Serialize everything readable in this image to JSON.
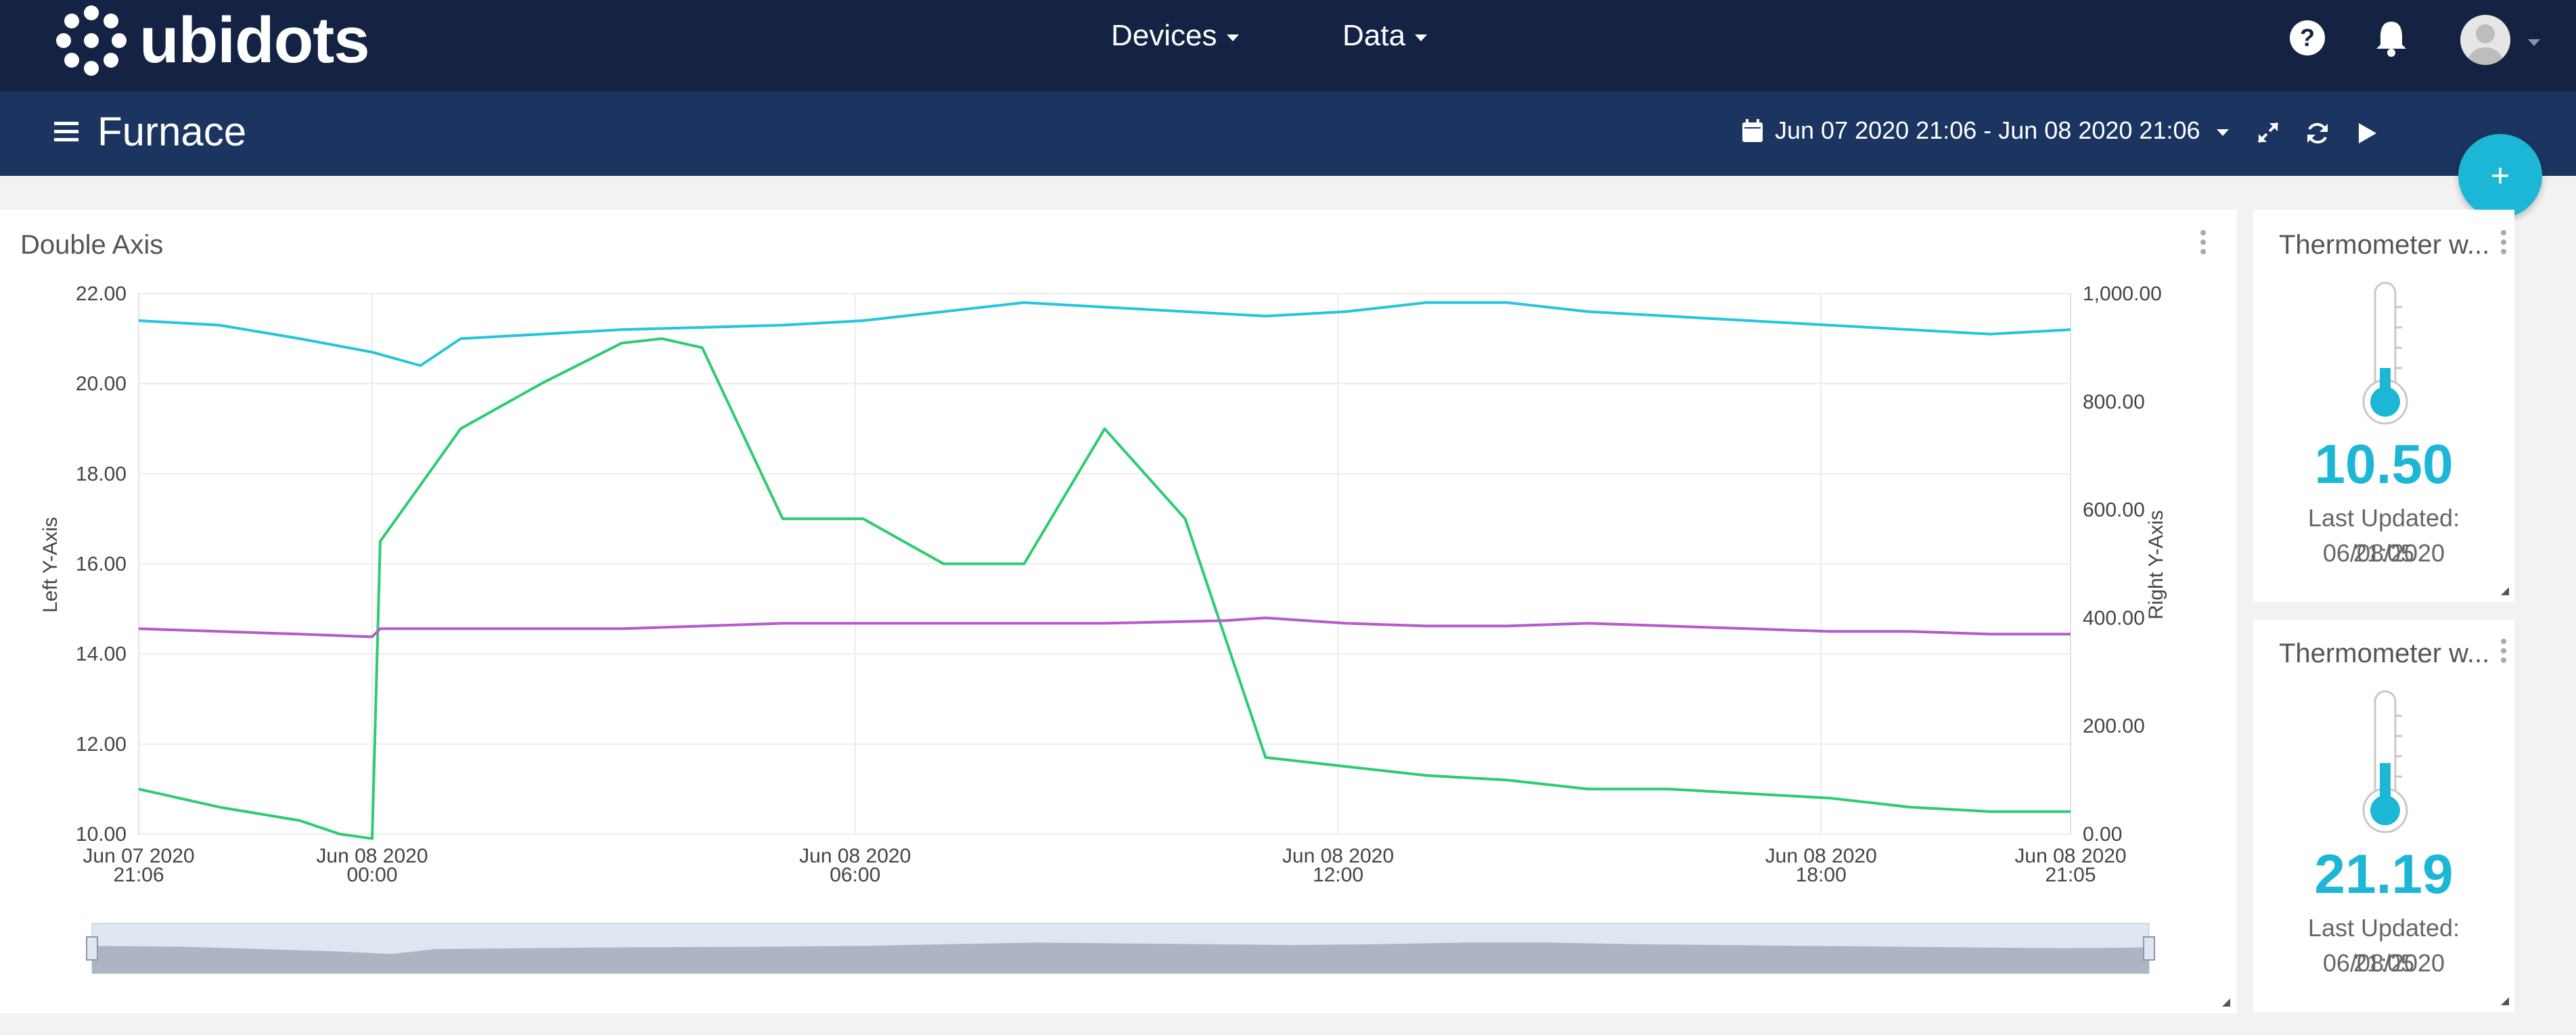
{
  "app": {
    "name": "ubidots"
  },
  "nav": {
    "devices_label": "Devices",
    "data_label": "Data"
  },
  "header_icons": [
    "help-icon",
    "bell-icon",
    "user-avatar"
  ],
  "dashboard": {
    "title": "Furnace",
    "date_range": "Jun 07 2020 21:06 - Jun 08 2020 21:06",
    "tool_icons": [
      "calendar-icon",
      "expand-icon",
      "refresh-icon",
      "play-icon"
    ],
    "add_label": "+"
  },
  "colors": {
    "topbar": "#142344",
    "subbar": "#1b3560",
    "accent": "#1cb6d6",
    "series_cyan": "#26c6da",
    "series_green": "#2ecc71",
    "series_purple": "#b45cc8"
  },
  "chart_widget": {
    "title": "Double Axis",
    "left_axis_label": "Left Y-Axis",
    "right_axis_label": "Right Y-Axis",
    "left_ticks": [
      "22.00",
      "20.00",
      "18.00",
      "16.00",
      "14.00",
      "12.00",
      "10.00"
    ],
    "right_ticks": [
      "1,000.00",
      "800.00",
      "600.00",
      "400.00",
      "200.00",
      "0.00"
    ],
    "x_ticks": [
      {
        "line1": "Jun 07 2020",
        "line2": "21:06"
      },
      {
        "line1": "Jun 08 2020",
        "line2": "00:00"
      },
      {
        "line1": "Jun 08 2020",
        "line2": "06:00"
      },
      {
        "line1": "Jun 08 2020",
        "line2": "12:00"
      },
      {
        "line1": "Jun 08 2020",
        "line2": "18:00"
      },
      {
        "line1": "Jun 08 2020",
        "line2": "21:05"
      }
    ]
  },
  "chart_data": {
    "type": "line",
    "title": "Double Axis",
    "x_unit": "hours since Jun 07 2020 21:06",
    "x_range": [
      0,
      24
    ],
    "left_ylim": [
      10,
      22
    ],
    "right_ylim": [
      0,
      1000
    ],
    "grid": true,
    "series": [
      {
        "color": "#26c6da",
        "axis": "left",
        "x": [
          0,
          1,
          2,
          2.9,
          3.5,
          4,
          6,
          8,
          9,
          10,
          11,
          12,
          13,
          14,
          15,
          16,
          17,
          18,
          19,
          20,
          21,
          22,
          23,
          24
        ],
        "y": [
          21.4,
          21.3,
          21.0,
          20.7,
          20.4,
          21.0,
          21.2,
          21.3,
          21.4,
          21.6,
          21.8,
          21.7,
          21.6,
          21.5,
          21.6,
          21.8,
          21.8,
          21.6,
          21.5,
          21.4,
          21.3,
          21.2,
          21.1,
          21.2
        ]
      },
      {
        "color": "#2ecc71",
        "axis": "left",
        "x": [
          0,
          1,
          2,
          2.5,
          2.9,
          3,
          4,
          5,
          6,
          6.5,
          7,
          8,
          9,
          10,
          11,
          12,
          13,
          14,
          15,
          16,
          17,
          18,
          19,
          20,
          21,
          22,
          23,
          24
        ],
        "y": [
          11.0,
          10.6,
          10.3,
          10.0,
          9.9,
          16.5,
          19.0,
          20.0,
          20.9,
          21.0,
          20.8,
          17.0,
          17.0,
          16.0,
          16.0,
          19.0,
          17.0,
          11.7,
          11.5,
          11.3,
          11.2,
          11.0,
          11.0,
          10.9,
          10.8,
          10.6,
          10.5,
          10.5
        ]
      },
      {
        "color": "#b45cc8",
        "axis": "right",
        "x": [
          0,
          1,
          2,
          2.9,
          3,
          4,
          6,
          8,
          10,
          12,
          13.5,
          14,
          15,
          16,
          17,
          18,
          19,
          20,
          21,
          22,
          23,
          24
        ],
        "y": [
          380,
          375,
          370,
          365,
          380,
          380,
          380,
          390,
          390,
          390,
          395,
          400,
          390,
          385,
          385,
          390,
          385,
          380,
          375,
          375,
          370,
          370
        ]
      }
    ]
  },
  "thermometers": [
    {
      "title": "Thermometer w...",
      "value": "10.50",
      "updated_line1": "Last Updated: 06/08/2020",
      "updated_line2": "21:05",
      "level": 0.35
    },
    {
      "title": "Thermometer w...",
      "value": "21.19",
      "updated_line1": "Last Updated: 06/08/2020",
      "updated_line2": "21:05",
      "level": 0.55
    }
  ]
}
